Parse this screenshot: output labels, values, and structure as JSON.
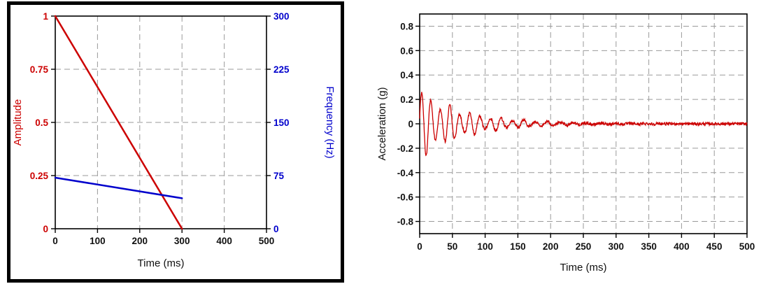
{
  "page": {
    "background": "#ffffff",
    "left_panel_frame_color": "#000000"
  },
  "colors": {
    "red_series": "#cc0000",
    "blue_series": "#0000cc",
    "gridline": "#9a9a9a",
    "axis_frame": "#000000"
  },
  "chart_data": [
    {
      "type": "line",
      "title": "",
      "xlabel": "Time (ms)",
      "ylabel_left": "Amplitude",
      "ylabel_right": "Frequency (Hz)",
      "xlim": [
        0,
        500
      ],
      "x_ticks": [
        0,
        100,
        200,
        300,
        400,
        500
      ],
      "left_axis": {
        "label": "Amplitude",
        "color": "#cc0000",
        "lim": [
          0,
          1
        ],
        "ticks": [
          0,
          0.25,
          0.5,
          0.75,
          1
        ]
      },
      "right_axis": {
        "label": "Frequency (Hz)",
        "color": "#0000cc",
        "lim": [
          0,
          300
        ],
        "ticks": [
          0,
          75,
          150,
          225,
          300
        ]
      },
      "grid": "dashed",
      "legend": "none",
      "series": [
        {
          "name": "amplitude",
          "axis": "left",
          "color": "#cc0000",
          "points": [
            [
              0,
              1
            ],
            [
              300,
              0
            ]
          ]
        },
        {
          "name": "frequency",
          "axis": "right",
          "color": "#0000cc",
          "points": [
            [
              0,
              72
            ],
            [
              300,
              43
            ]
          ]
        }
      ]
    },
    {
      "type": "line",
      "title": "",
      "xlabel": "Time (ms)",
      "ylabel": "Acceleration (g)",
      "xlim": [
        0,
        500
      ],
      "ylim": [
        -0.9,
        0.9
      ],
      "x_ticks": [
        0,
        50,
        100,
        150,
        200,
        250,
        300,
        350,
        400,
        450,
        500
      ],
      "y_ticks": [
        0.8,
        0.6,
        0.4,
        0.2,
        0,
        -0.2,
        -0.4,
        -0.6,
        -0.8
      ],
      "grid": "dashed",
      "legend": "none",
      "series_color": "#cc0000",
      "series_name": "acceleration",
      "signal": {
        "model": "decaying_chirp",
        "amplitude_g": 0.3,
        "decay_ms": 70,
        "freq_start_hz": 72,
        "freq_end_hz": 43,
        "sweep_ms": 300,
        "beat_period_ms": 37,
        "noise_g": 0.012,
        "duration_ms": 500,
        "sample_step_ms": 0.5
      }
    }
  ]
}
